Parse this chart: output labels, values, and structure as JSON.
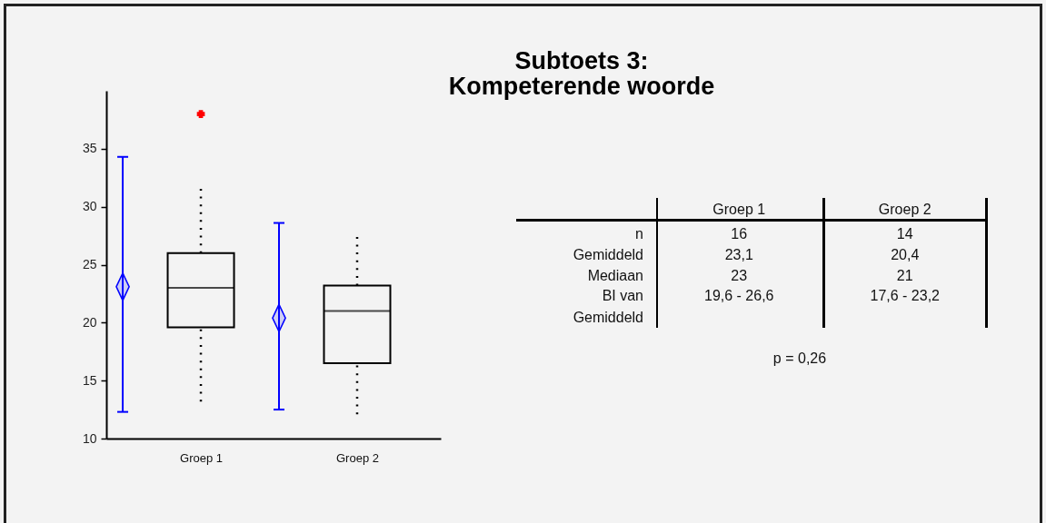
{
  "chart_data": {
    "type": "box",
    "title": "Subtoets 3:\nKompeterende woorde",
    "categories": [
      null,
      "Groep 1",
      null,
      "Groep 2"
    ],
    "ylim": [
      10,
      40
    ],
    "yticks": [
      10,
      15,
      20,
      25,
      30,
      35
    ],
    "series": [
      {
        "color": "#000000",
        "boxes": [
          null,
          {
            "low": 13.2,
            "q1": 19.6,
            "median": 23,
            "q3": 26,
            "high": 31.7
          },
          null,
          {
            "low": 12.1,
            "q1": 16.5,
            "median": 21,
            "q3": 23.2,
            "high": 27.6
          }
        ]
      },
      {
        "type": "scatter",
        "color": "#0000ff",
        "marker": "diamond",
        "values": [
          23.1,
          null,
          20.4,
          null
        ],
        "errors": [
          [
            12.3,
            34.3
          ],
          null,
          [
            12.5,
            28.6
          ],
          null
        ]
      },
      {
        "type": "scatter",
        "color": "#ff0000",
        "marker": "cross",
        "values": [
          null,
          38,
          null,
          null
        ]
      }
    ],
    "annotations": [
      "n",
      "16",
      "14",
      "Gemiddeld",
      "23,1",
      "20,4",
      "Mediaan",
      "23",
      "21",
      "BI van\nGemiddeld",
      "19,6 - 26,6",
      "17,6 - 23,2",
      "p = 0,26"
    ]
  }
}
